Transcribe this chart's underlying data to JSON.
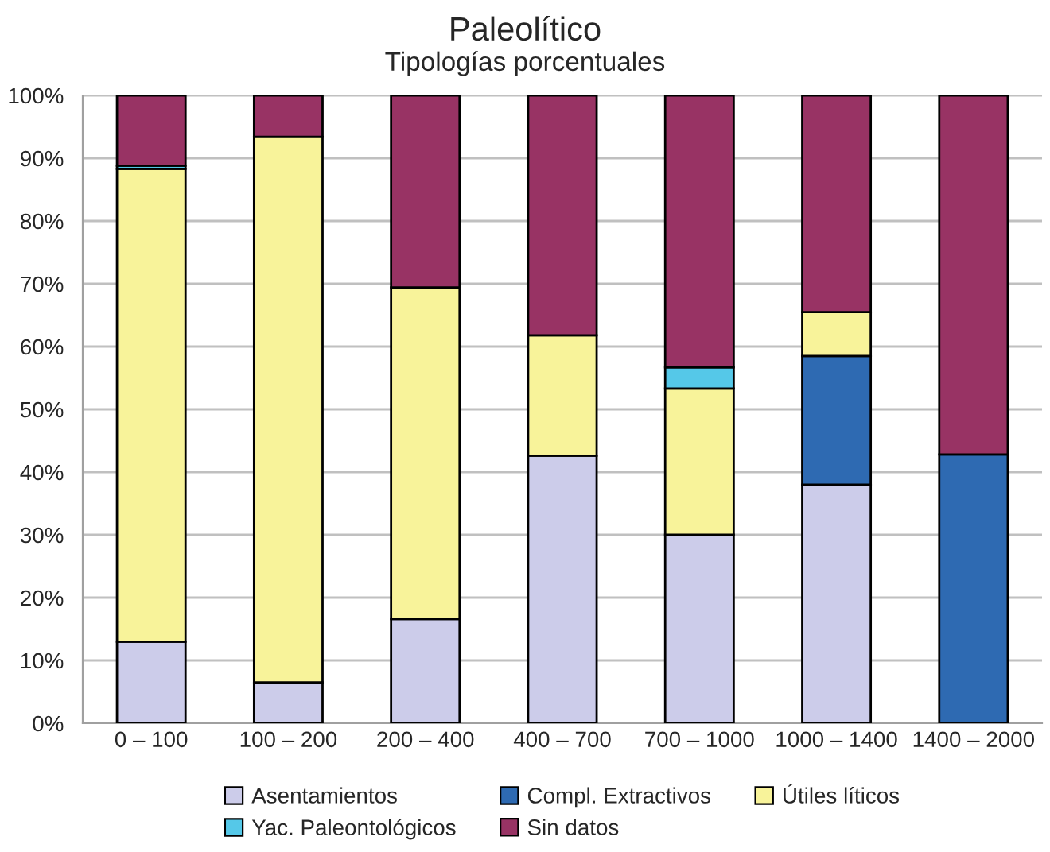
{
  "chart_data": {
    "type": "bar",
    "title": "Paleolítico",
    "subtitle": "Tipologías porcentuales",
    "stacked": true,
    "categories": [
      "0 – 100",
      "100 – 200",
      "200 – 400",
      "400 – 700",
      "700 – 1000",
      "1000 – 1400",
      "1400 – 2000"
    ],
    "series": [
      {
        "name": "Asentamientos",
        "color": "#ccccea",
        "values": [
          13,
          6.5,
          16.6,
          42.6,
          30,
          38,
          null
        ]
      },
      {
        "name": "Compl. Extractivos",
        "color": "#2e6ab2",
        "values": [
          null,
          null,
          null,
          null,
          null,
          20.5,
          42.8
        ]
      },
      {
        "name": "Útiles líticos",
        "color": "#f8f39a",
        "values": [
          75.3,
          86.9,
          52.8,
          19.2,
          23.3,
          7,
          null
        ]
      },
      {
        "name": "Yac. Paleontológicos",
        "color": "#55c8e8",
        "values": [
          0.5,
          null,
          null,
          null,
          3.4,
          null,
          null
        ]
      },
      {
        "name": "Sin datos",
        "color": "#983364",
        "values": [
          11.2,
          6.6,
          30.6,
          38.2,
          43.3,
          34.5,
          57.2
        ]
      }
    ],
    "ylim": [
      0,
      100
    ],
    "yticks": [
      {
        "value": 0,
        "label": "0%"
      },
      {
        "value": 10,
        "label": "10%"
      },
      {
        "value": 20,
        "label": "20%"
      },
      {
        "value": 30,
        "label": "30%"
      },
      {
        "value": 40,
        "label": "40%"
      },
      {
        "value": 50,
        "label": "50%"
      },
      {
        "value": 60,
        "label": "60%"
      },
      {
        "value": 70,
        "label": "70%"
      },
      {
        "value": 80,
        "label": "80%"
      },
      {
        "value": 90,
        "label": "90%"
      },
      {
        "value": 100,
        "label": "100%"
      }
    ],
    "grid": "y",
    "legend": "bottom"
  }
}
